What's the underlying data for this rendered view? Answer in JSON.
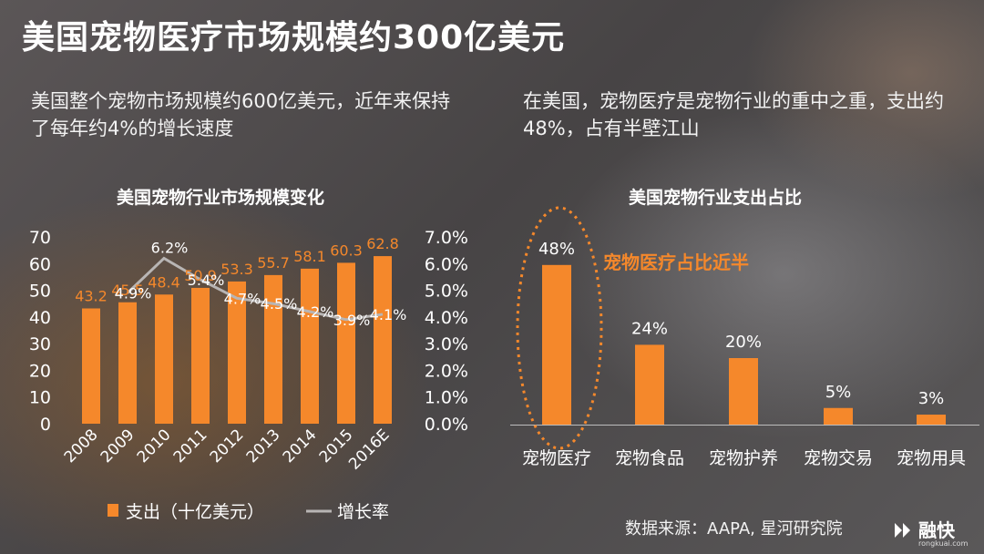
{
  "title": "美国宠物医疗市场规模约300亿美元",
  "left_text": "美国整个宠物市场规模约600亿美元，近年来保持了每年约4%的增长速度",
  "right_text": "在美国，宠物医疗是宠物行业的重中之重，支出约48%，占有半壁江山",
  "source": "数据来源：AAPA, 星河研究院",
  "logo": {
    "name": "融快",
    "sub": "rongkuai.com"
  },
  "colors": {
    "bar": "#f5882b",
    "line": "#b8b5b4",
    "label": "#f5882b"
  },
  "chart_data": [
    {
      "type": "bar",
      "title": "美国宠物行业市场规模变化",
      "categories": [
        "2008",
        "2009",
        "2010",
        "2011",
        "2012",
        "2013",
        "2014",
        "2015",
        "2016E"
      ],
      "series": [
        {
          "name": "支出（十亿美元）",
          "type": "bar",
          "axis": "left",
          "values": [
            43.2,
            45.5,
            48.4,
            50.9,
            53.3,
            55.7,
            58.1,
            60.3,
            62.8
          ]
        },
        {
          "name": "增长率",
          "type": "line",
          "axis": "right",
          "values": [
            null,
            4.9,
            6.2,
            5.4,
            4.7,
            4.5,
            4.2,
            3.9,
            4.1
          ],
          "labels": [
            "",
            "4.9%",
            "6.2%",
            "5.4%",
            "4.7%",
            "4.5%",
            "4.2%",
            "3.9%",
            "4.1%"
          ]
        }
      ],
      "ylim": [
        0,
        70
      ],
      "yticks": [
        "0",
        "10",
        "20",
        "30",
        "40",
        "50",
        "60",
        "70"
      ],
      "y2lim": [
        0,
        7
      ],
      "y2ticks": [
        "0.0%",
        "1.0%",
        "2.0%",
        "3.0%",
        "4.0%",
        "5.0%",
        "6.0%",
        "7.0%"
      ],
      "legend": [
        "支出（十亿美元）",
        "增长率"
      ],
      "legend_position": "bottom",
      "grid": false
    },
    {
      "type": "bar",
      "title": "美国宠物行业支出占比",
      "categories": [
        "宠物医疗",
        "宠物食品",
        "宠物护养",
        "宠物交易",
        "宠物用具"
      ],
      "values": [
        48,
        24,
        20,
        5,
        3
      ],
      "labels": [
        "48%",
        "24%",
        "20%",
        "5%",
        "3%"
      ],
      "annotation": "宠物医疗占比近半",
      "grid": false
    }
  ]
}
